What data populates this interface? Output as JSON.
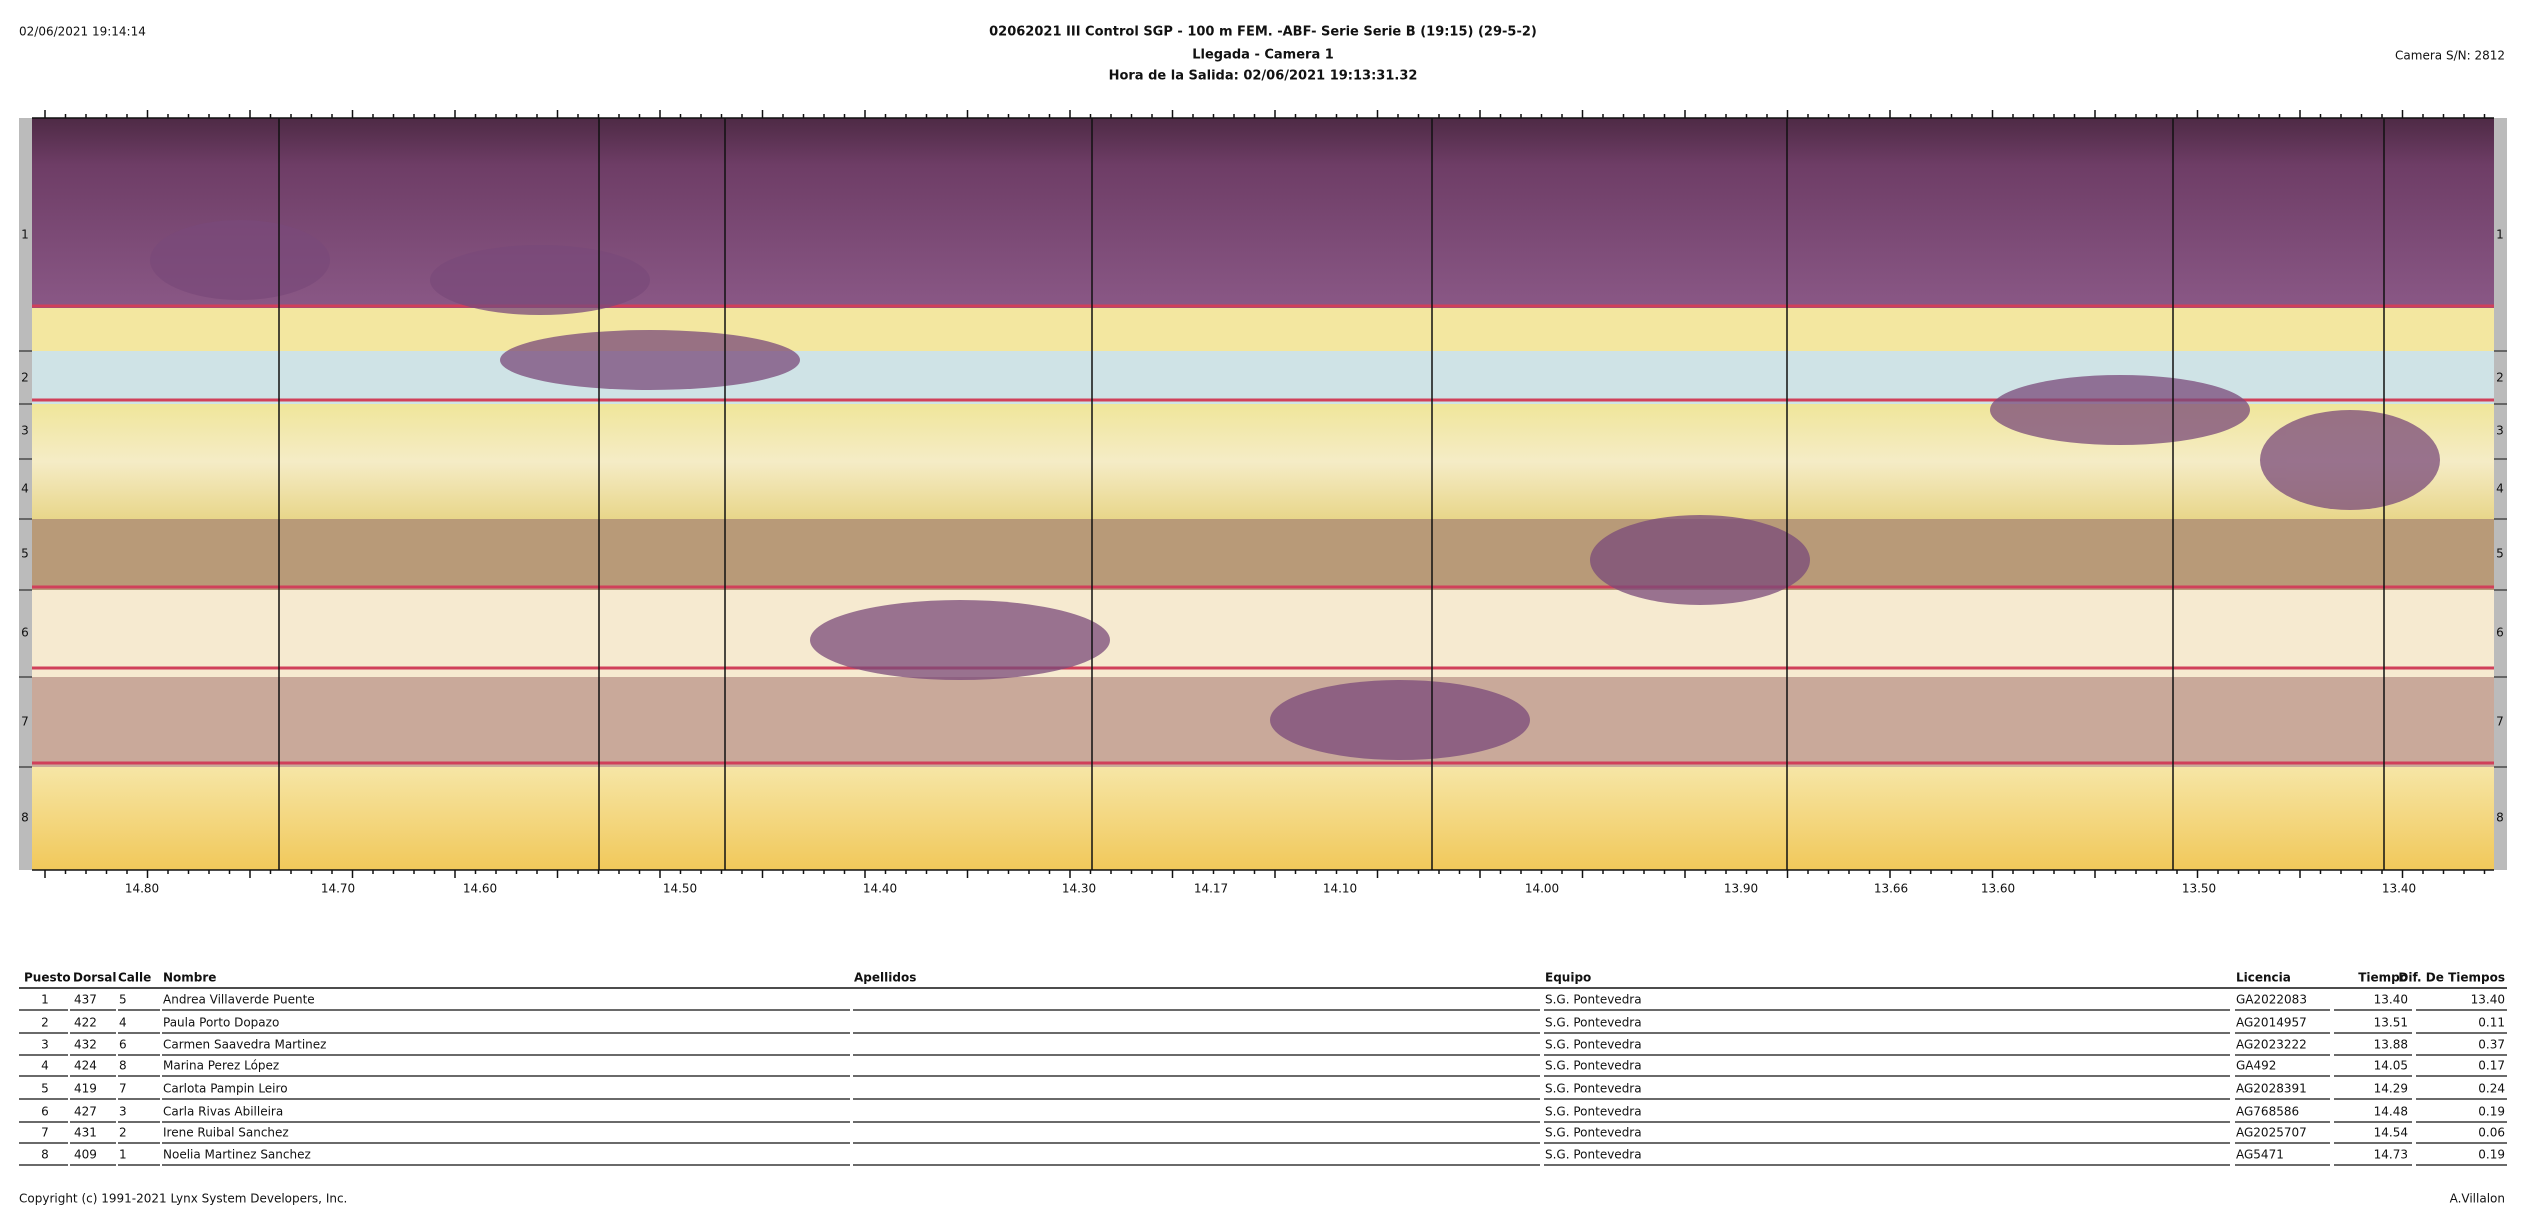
{
  "header": {
    "timestamp": "02/06/2021 19:14:14",
    "title": "02062021 III Control SGP - 100 m FEM. -ABF- Serie Serie B (19:15) (29-5-2)",
    "subtitle": "Llegada - Camera 1",
    "start_time": "Hora de la Salida: 02/06/2021 19:13:31.32",
    "camera": "Camera S/N: 2812"
  },
  "photo": {
    "lanes": [
      "1",
      "2",
      "3",
      "4",
      "5",
      "6",
      "7",
      "8"
    ],
    "time_labels": [
      "14.80",
      "14.70",
      "14.60",
      "14.50",
      "14.40",
      "14.30",
      "14.17",
      "14.10",
      "14.00",
      "13.90",
      "13.66",
      "13.60",
      "13.50",
      "13.40"
    ]
  },
  "table": {
    "columns": [
      "Puesto",
      "Dorsal",
      "Calle",
      "Nombre",
      "Apellidos",
      "Equipo",
      "Licencia",
      "Tiempo",
      "Dif. De Tiempos"
    ],
    "rows": [
      [
        "1",
        "437",
        "5",
        "Andrea Villaverde Puente",
        "",
        "S.G. Pontevedra",
        "GA2022083",
        "13.40",
        "13.40"
      ],
      [
        "2",
        "422",
        "4",
        "Paula Porto Dopazo",
        "",
        "S.G. Pontevedra",
        "AG2014957",
        "13.51",
        "0.11"
      ],
      [
        "3",
        "432",
        "6",
        "Carmen Saavedra Martinez",
        "",
        "S.G. Pontevedra",
        "AG2023222",
        "13.88",
        "0.37"
      ],
      [
        "4",
        "424",
        "8",
        "Marina Perez López",
        "",
        "S.G. Pontevedra",
        "GA492",
        "14.05",
        "0.17"
      ],
      [
        "5",
        "419",
        "7",
        "Carlota Pampin Leiro",
        "",
        "S.G. Pontevedra",
        "AG2028391",
        "14.29",
        "0.24"
      ],
      [
        "6",
        "427",
        "3",
        "Carla Rivas Abilleira",
        "",
        "S.G. Pontevedra",
        "AG768586",
        "14.48",
        "0.19"
      ],
      [
        "7",
        "431",
        "2",
        "Irene Ruibal Sanchez",
        "",
        "S.G. Pontevedra",
        "AG2025707",
        "14.54",
        "0.06"
      ],
      [
        "8",
        "409",
        "1",
        "Noelia Martinez Sanchez",
        "",
        "S.G. Pontevedra",
        "AG5471",
        "14.73",
        "0.19"
      ]
    ]
  },
  "footer": {
    "copyright": "Copyright (c) 1991-2021 Lynx System Developers, Inc.",
    "operator": "A.Villalon"
  }
}
